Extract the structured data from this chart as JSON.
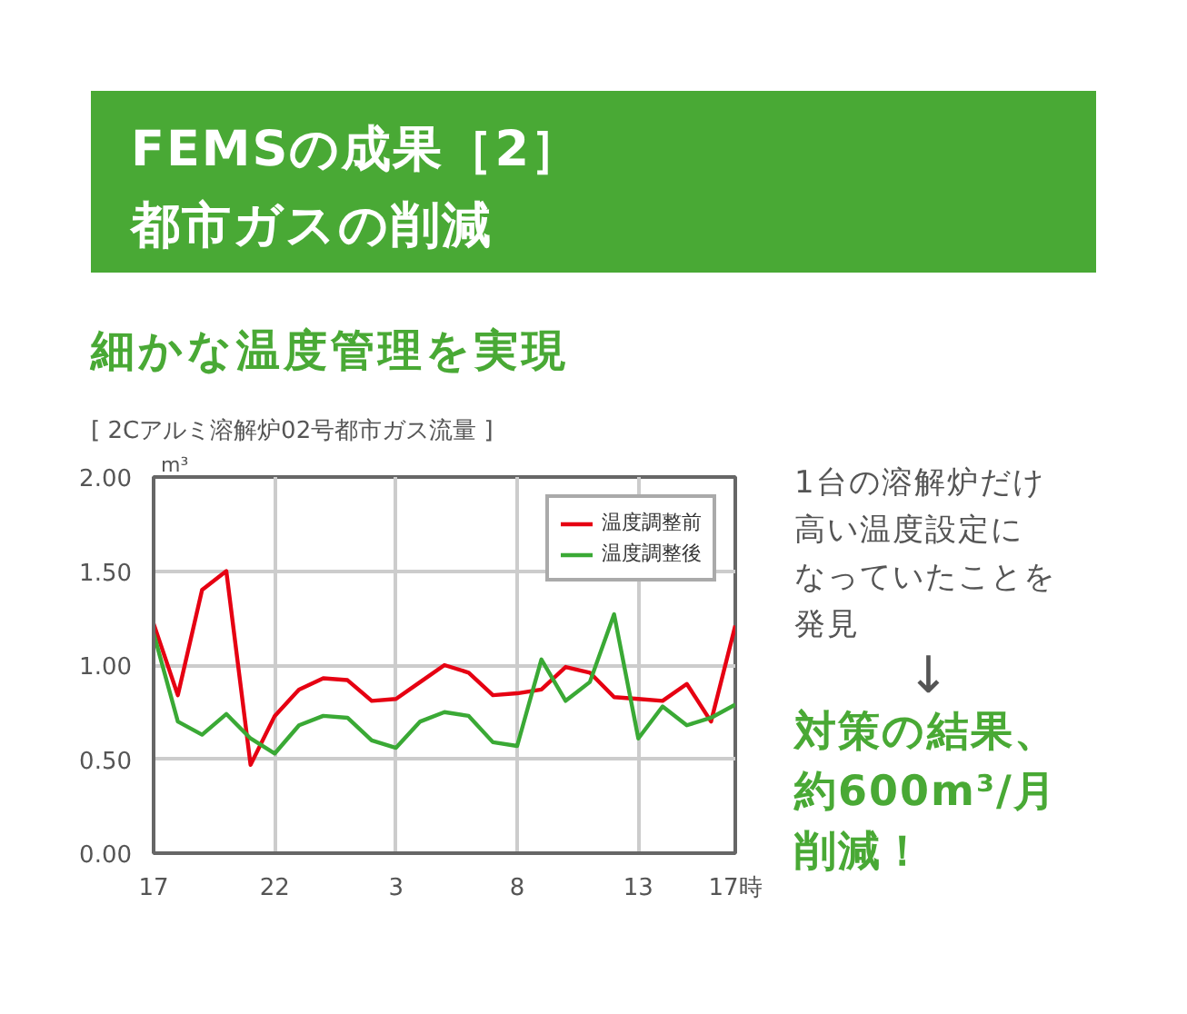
{
  "chart_data": {
    "type": "line",
    "title": "FEMSの成果［2］都市ガスの削減",
    "subtitle": "細かな温度管理を実現",
    "ylabel": "m³",
    "annotations": [
      "[ 2Cアルミ溶解炉02号都市ガス流量 ]",
      "1台の溶解炉だけ高い温度設定になっていたことを発見",
      "↓",
      "対策の結果、約600m³/月削減！"
    ],
    "categories": [
      "17",
      null,
      null,
      null,
      null,
      "22",
      null,
      null,
      null,
      null,
      "3",
      null,
      null,
      null,
      null,
      "8",
      null,
      null,
      null,
      null,
      "13",
      null,
      null,
      null,
      "17時"
    ],
    "series": [
      {
        "name": "温度調整前",
        "color": "#e60012",
        "values": [
          1.22,
          0.84,
          1.4,
          1.5,
          0.47,
          0.73,
          0.87,
          0.93,
          0.92,
          0.81,
          0.82,
          0.91,
          1.0,
          0.96,
          0.84,
          0.85,
          0.87,
          0.99,
          0.96,
          0.83,
          0.82,
          0.81,
          0.9,
          0.7,
          1.21
        ]
      },
      {
        "name": "温度調整後",
        "color": "#3aa935",
        "values": [
          1.17,
          0.7,
          0.63,
          0.74,
          0.61,
          0.53,
          0.68,
          0.73,
          0.72,
          0.6,
          0.56,
          0.7,
          0.75,
          0.73,
          0.59,
          0.57,
          1.03,
          0.81,
          0.91,
          1.27,
          0.61,
          0.78,
          0.68,
          0.72,
          0.79
        ]
      }
    ],
    "ylim": [
      0,
      2
    ],
    "yticks": [
      {
        "value": 0,
        "label": "0.00"
      },
      {
        "value": 0.5,
        "label": "0.50"
      },
      {
        "value": 1,
        "label": "1.00"
      },
      {
        "value": 1.5,
        "label": "1.50"
      },
      {
        "value": 2,
        "label": "2.00"
      }
    ],
    "grid": true,
    "legend": "top right"
  }
}
